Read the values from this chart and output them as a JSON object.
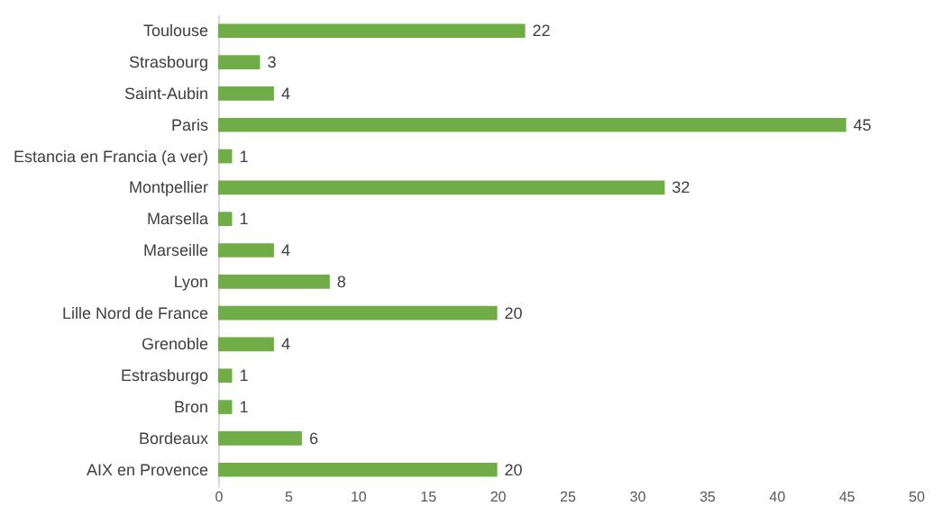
{
  "chart_data": {
    "type": "bar",
    "orientation": "horizontal",
    "categories": [
      "Toulouse",
      "Strasbourg",
      "Saint-Aubin",
      "Paris",
      "Estancia en Francia (a ver)",
      "Montpellier",
      "Marsella",
      "Marseille",
      "Lyon",
      "Lille Nord de France",
      "Grenoble",
      "Estrasburgo",
      "Bron",
      "Bordeaux",
      "AIX en Provence"
    ],
    "values": [
      22,
      3,
      4,
      45,
      1,
      32,
      1,
      4,
      8,
      20,
      4,
      1,
      1,
      6,
      20
    ],
    "color": "#70ad47",
    "xlim": [
      0,
      50
    ],
    "xticks": [
      0,
      5,
      10,
      15,
      20,
      25,
      30,
      35,
      40,
      45,
      50
    ],
    "data_labels": true,
    "grid": false
  }
}
